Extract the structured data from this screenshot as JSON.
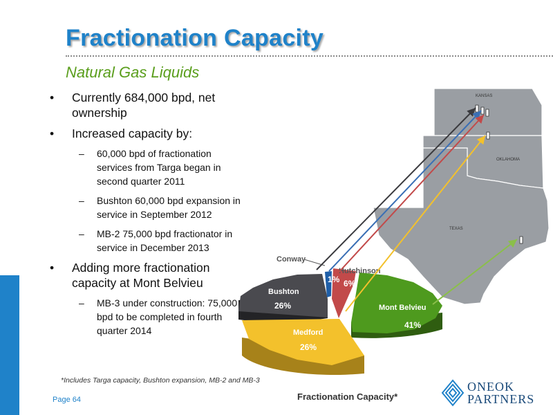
{
  "slide": {
    "title": "Fractionation Capacity",
    "subtitle": "Natural Gas Liquids",
    "footnote": "*Includes Targa capacity, Bushton expansion, MB-2 and MB-3",
    "page": "Page 64",
    "logo": {
      "line1": "ONEOK",
      "line2": "PARTNERS",
      "icon": "oneok-logo-icon"
    }
  },
  "bullets": {
    "b1": "Currently 684,000 bpd, net ownership",
    "b2": "Increased capacity by:",
    "b2a": "60,000 bpd of fractionation services from Targa began in second quarter 2011",
    "b2b": "Bushton 60,000 bpd expansion in service in September 2012",
    "b2c": "MB-2 75,000 bpd fractionator in service in December 2013",
    "b3": "Adding more fractionation capacity at Mont Belvieu",
    "b3a": "MB-3 under construction: 75,000 bpd to be completed in fourth quarter 2014"
  },
  "map": {
    "states": [
      "KANSAS",
      "OKLAHOMA",
      "TEXAS"
    ]
  },
  "chart_data": {
    "type": "pie",
    "title": "Fractionation Capacity*",
    "slices": [
      {
        "label": "Mont Belvieu",
        "value": 41,
        "display": "41%",
        "color": "#4e9a1e"
      },
      {
        "label": "Medford",
        "value": 26,
        "display": "26%",
        "color": "#f3c12c"
      },
      {
        "label": "Bushton",
        "value": 26,
        "display": "26%",
        "color": "#4a4a4f"
      },
      {
        "label": "Conway",
        "value": 1,
        "display": "1%",
        "color": "#1f5fa8"
      },
      {
        "label": "Hutchinson",
        "value": 6,
        "display": "6%",
        "color": "#c24a4a"
      }
    ]
  }
}
